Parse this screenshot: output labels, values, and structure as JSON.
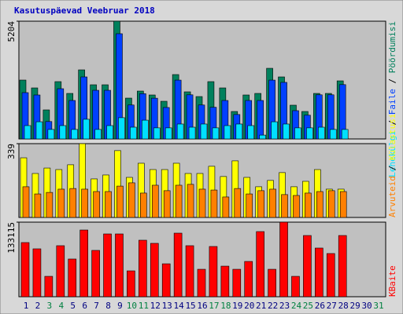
{
  "title": "Kasutuspäevad Veebruar 2018",
  "legend_separator": " / ",
  "chart_data": [
    {
      "type": "bar",
      "ylim": [
        0,
        5204
      ],
      "yticks": [
        5204
      ],
      "series": [
        {
          "name": "Pöördumisi",
          "color": "#00805c",
          "values": [
            2602,
            2255,
            1284,
            2533,
            2012,
            3053,
            2394,
            2394,
            5204,
            1804,
            2116,
            1943,
            1665,
            2845,
            2082,
            1873,
            2533,
            2255,
            1214,
            1943,
            2012,
            3122,
            2741,
            1492,
            1214,
            2012,
            2012,
            2567,
            null,
            null,
            null
          ]
        },
        {
          "name": "Faile",
          "color": "#0040ff",
          "values": [
            2047,
            1943,
            770,
            2220,
            1700,
            2741,
            2150,
            2150,
            4650,
            1500,
            2000,
            1800,
            1390,
            2600,
            1950,
            1500,
            1400,
            1700,
            1080,
            1700,
            1700,
            2600,
            2500,
            1250,
            1050,
            1950,
            1950,
            2400,
            null,
            null,
            null
          ]
        },
        {
          "name": "Lehekülgi",
          "color": "#00e0ff",
          "values": [
            590,
            760,
            420,
            590,
            420,
            870,
            420,
            590,
            940,
            520,
            830,
            490,
            490,
            660,
            520,
            660,
            490,
            590,
            660,
            590,
            170,
            760,
            660,
            490,
            490,
            520,
            420,
            420,
            null,
            null,
            null
          ]
        }
      ]
    },
    {
      "type": "bar",
      "ylim": [
        0,
        339
      ],
      "yticks": [
        339
      ],
      "series": [
        {
          "name": "Külastusi",
          "color": "#ffff00",
          "values": [
            274,
            202,
            227,
            220,
            242,
            339,
            177,
            195,
            307,
            184,
            249,
            220,
            220,
            249,
            202,
            202,
            235,
            188,
            260,
            184,
            141,
            170,
            206,
            141,
            166,
            220,
            130,
            130,
            null,
            null,
            null
          ]
        },
        {
          "name": "Arvuteid",
          "color": "#ff8000",
          "values": [
            141,
            108,
            115,
            130,
            133,
            130,
            119,
            119,
            144,
            159,
            112,
            148,
            123,
            148,
            152,
            130,
            126,
            94,
            133,
            108,
            123,
            130,
            105,
            101,
            112,
            119,
            123,
            119,
            null,
            null,
            null
          ]
        }
      ]
    },
    {
      "type": "bar",
      "ylim": [
        0,
        133115
      ],
      "yticks": [
        133115
      ],
      "categories": [
        "1",
        "2",
        "3",
        "4",
        "5",
        "6",
        "7",
        "8",
        "9",
        "10",
        "11",
        "12",
        "13",
        "14",
        "15",
        "16",
        "17",
        "18",
        "19",
        "20",
        "21",
        "22",
        "23",
        "24",
        "25",
        "26",
        "27",
        "28",
        "29",
        "30",
        "31"
      ],
      "label_colors": [
        "#000080",
        "#000080",
        "#008040",
        "#008040",
        "#000080",
        "#000080",
        "#000080",
        "#000080",
        "#000080",
        "#008040",
        "#008040",
        "#000080",
        "#000080",
        "#000080",
        "#000080",
        "#000080",
        "#008040",
        "#008040",
        "#000080",
        "#000080",
        "#000080",
        "#000080",
        "#000080",
        "#008040",
        "#008040",
        "#000080",
        "#000080",
        "#000080",
        "#000080",
        "#000080",
        "#008040"
      ],
      "series": [
        {
          "name": "KBaite",
          "color": "#ff0000",
          "values": [
            96700,
            85500,
            36400,
            91100,
            67300,
            119100,
            82700,
            112100,
            112100,
            46200,
            100900,
            95300,
            58800,
            113500,
            91100,
            49000,
            89700,
            54600,
            49000,
            63000,
            116300,
            49000,
            133115,
            36400,
            109300,
            86900,
            77100,
            109300,
            null,
            null,
            null
          ]
        }
      ]
    }
  ]
}
